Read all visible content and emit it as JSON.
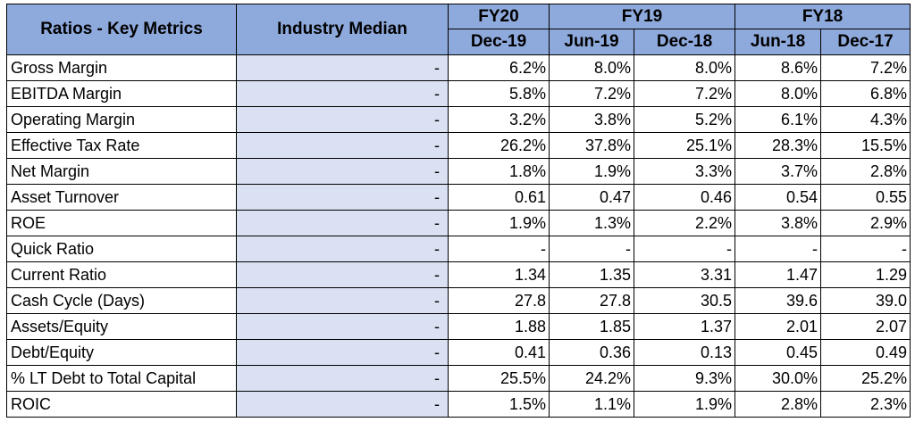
{
  "header": {
    "metric_col": "Ratios - Key Metrics",
    "median_col": "Industry Median",
    "fiscal_years": [
      {
        "label": "FY20",
        "span": 1
      },
      {
        "label": "FY19",
        "span": 2
      },
      {
        "label": "FY18",
        "span": 2
      }
    ],
    "periods": [
      "Dec-19",
      "Jun-19",
      "Dec-18",
      "Jun-18",
      "Dec-17"
    ]
  },
  "rows": [
    {
      "metric": "Gross Margin",
      "median": "-",
      "values": [
        "6.2%",
        "8.0%",
        "8.0%",
        "8.6%",
        "7.2%"
      ]
    },
    {
      "metric": "EBITDA Margin",
      "median": "-",
      "values": [
        "5.8%",
        "7.2%",
        "7.2%",
        "8.0%",
        "6.8%"
      ]
    },
    {
      "metric": "Operating Margin",
      "median": "-",
      "values": [
        "3.2%",
        "3.8%",
        "5.2%",
        "6.1%",
        "4.3%"
      ]
    },
    {
      "metric": "Effective Tax Rate",
      "median": "-",
      "values": [
        "26.2%",
        "37.8%",
        "25.1%",
        "28.3%",
        "15.5%"
      ]
    },
    {
      "metric": "Net Margin",
      "median": "-",
      "values": [
        "1.8%",
        "1.9%",
        "3.3%",
        "3.7%",
        "2.8%"
      ]
    },
    {
      "metric": "Asset Turnover",
      "median": "-",
      "values": [
        "0.61",
        "0.47",
        "0.46",
        "0.54",
        "0.55"
      ]
    },
    {
      "metric": "ROE",
      "median": "-",
      "values": [
        "1.9%",
        "1.3%",
        "2.2%",
        "3.8%",
        "2.9%"
      ]
    },
    {
      "metric": "Quick Ratio",
      "median": "-",
      "values": [
        "-",
        "-",
        "-",
        "-",
        "-"
      ]
    },
    {
      "metric": "Current Ratio",
      "median": "-",
      "values": [
        "1.34",
        "1.35",
        "3.31",
        "1.47",
        "1.29"
      ]
    },
    {
      "metric": "Cash Cycle (Days)",
      "median": "-",
      "values": [
        "27.8",
        "27.8",
        "30.5",
        "39.6",
        "39.0"
      ]
    },
    {
      "metric": "Assets/Equity",
      "median": "-",
      "values": [
        "1.88",
        "1.85",
        "1.37",
        "2.01",
        "2.07"
      ]
    },
    {
      "metric": "Debt/Equity",
      "median": "-",
      "values": [
        "0.41",
        "0.36",
        "0.13",
        "0.45",
        "0.49"
      ]
    },
    {
      "metric": "% LT Debt to Total Capital",
      "median": "-",
      "values": [
        "25.5%",
        "24.2%",
        "9.3%",
        "30.0%",
        "25.2%"
      ]
    },
    {
      "metric": "ROIC",
      "median": "-",
      "values": [
        "1.5%",
        "1.1%",
        "1.9%",
        "2.8%",
        "2.3%"
      ]
    }
  ]
}
